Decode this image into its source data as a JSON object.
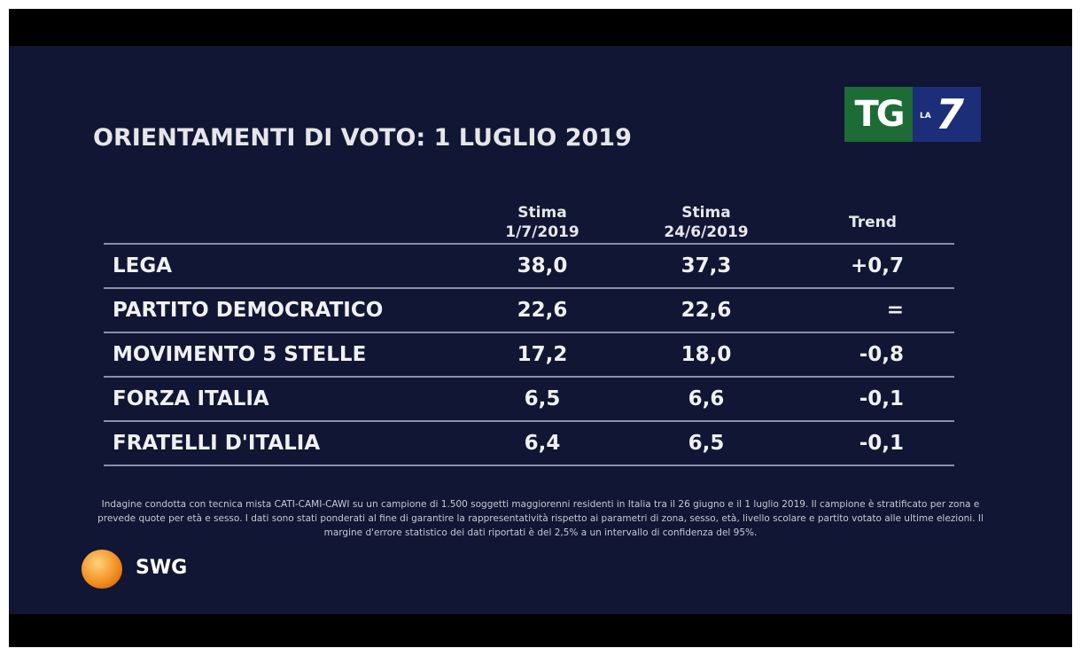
{
  "header": {
    "title": "ORIENTAMENTI DI VOTO: 1 LUGLIO 2019",
    "logo": {
      "tg": "TG",
      "la": "LA",
      "seven": "7"
    }
  },
  "table": {
    "columns": [
      [
        "Stima",
        "1/7/2019"
      ],
      [
        "Stima",
        "24/6/2019"
      ],
      [
        "Trend"
      ]
    ],
    "rows": [
      [
        "LEGA",
        "38,0",
        "37,3",
        "+0,7"
      ],
      [
        "PARTITO DEMOCRATICO",
        "22,6",
        "22,6",
        "="
      ],
      [
        "MOVIMENTO 5 STELLE",
        "17,2",
        "18,0",
        "-0,8"
      ],
      [
        "FORZA ITALIA",
        "6,5",
        "6,6",
        "-0,1"
      ],
      [
        "FRATELLI D'ITALIA",
        "6,4",
        "6,5",
        "-0,1"
      ]
    ]
  },
  "footnote": "Indagine condotta con tecnica mista CATI-CAMI-CAWI su un campione di 1.500 soggetti maggiorenni residenti in Italia tra il 26 giugno e il 1 luglio 2019. Il campione è stratificato per zona e prevede quote per età e sesso. I dati sono stati ponderati al fine di garantire la rappresentatività rispetto ai parametri di zona, sesso, età, livello scolare e partito votato alle ultime elezioni. Il margine d'errore statistico dei dati riportati è del 2,5% a un intervallo di confidenza del 95%.",
  "source": "SWG"
}
